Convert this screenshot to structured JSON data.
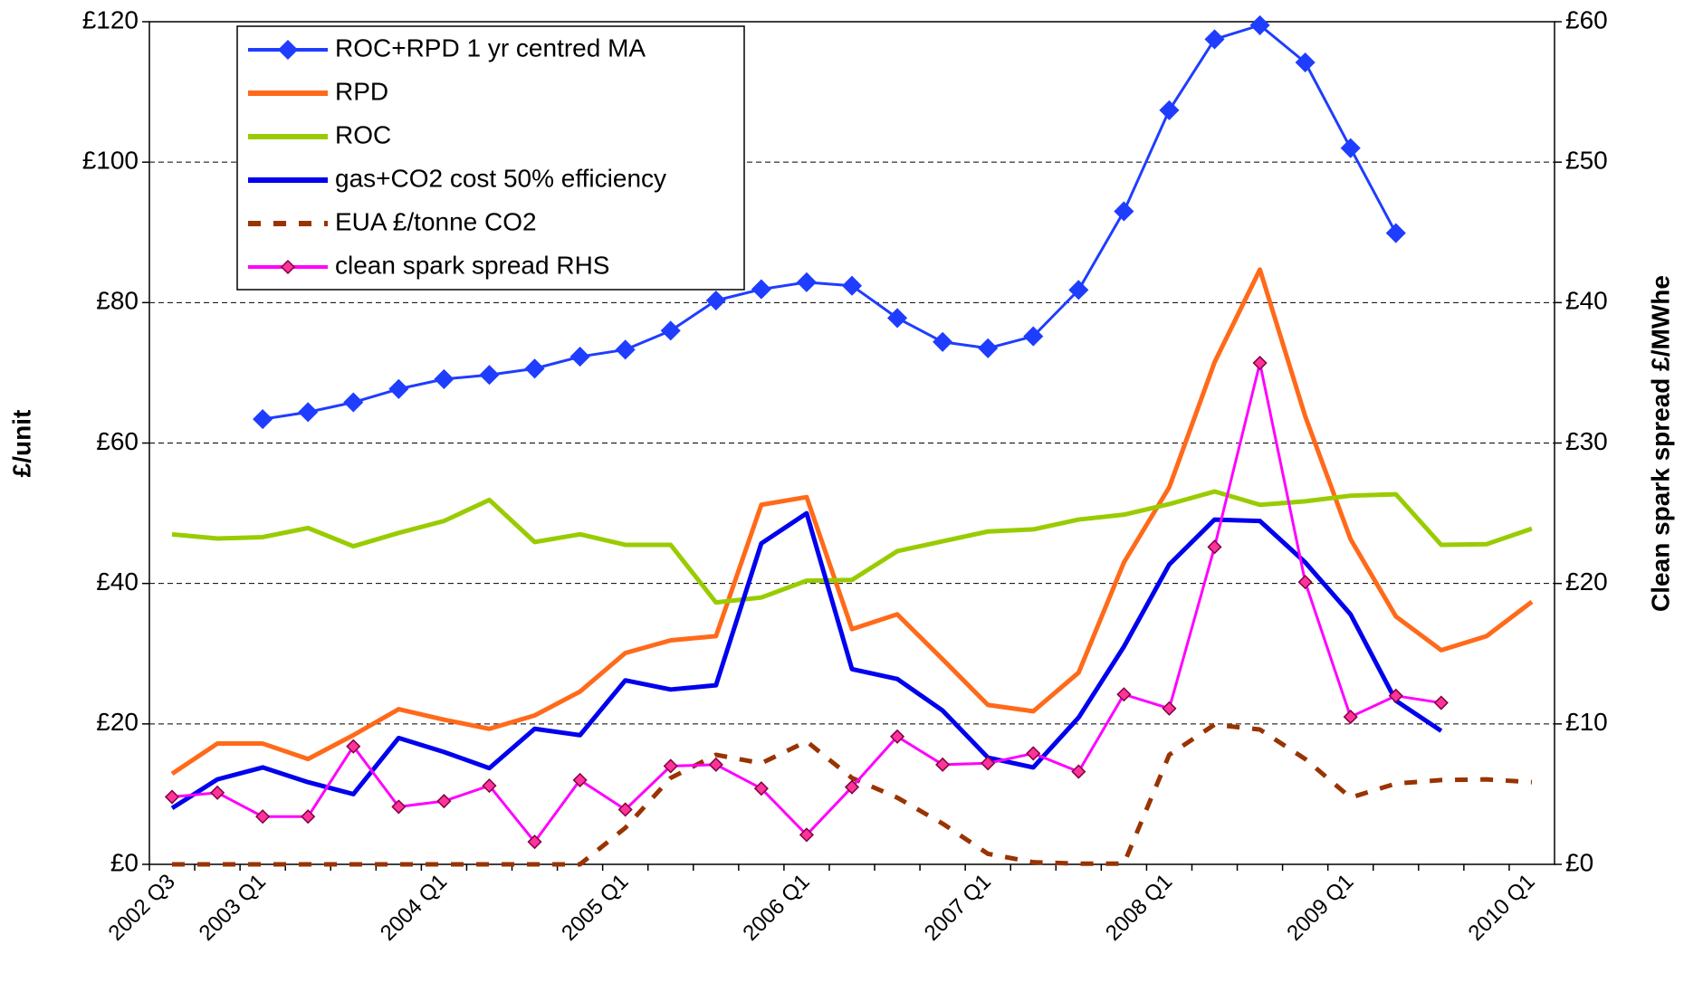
{
  "chart_data": {
    "type": "line",
    "categories": [
      "2002 Q3",
      null,
      "2003 Q1",
      null,
      null,
      null,
      "2004 Q1",
      null,
      null,
      null,
      "2005 Q1",
      null,
      null,
      null,
      "2006 Q1",
      null,
      null,
      null,
      "2007 Q1",
      null,
      null,
      null,
      "2008 Q1",
      null,
      null,
      null,
      "2009 Q1",
      null,
      null,
      null,
      "2010 Q1"
    ],
    "ylabel": "£/unit",
    "y2label": "Clean spark spread £/MWhe",
    "ylim": [
      0,
      120
    ],
    "yticks": [
      {
        "value": 0,
        "label": "£0"
      },
      {
        "value": 20,
        "label": "£20"
      },
      {
        "value": 40,
        "label": "£40"
      },
      {
        "value": 60,
        "label": "£60"
      },
      {
        "value": 80,
        "label": "£80"
      },
      {
        "value": 100,
        "label": "£100"
      },
      {
        "value": 120,
        "label": "£120"
      }
    ],
    "y2lim": [
      0,
      60
    ],
    "y2ticks": [
      {
        "value": 0,
        "label": "£0"
      },
      {
        "value": 10,
        "label": "£10"
      },
      {
        "value": 20,
        "label": "£20"
      },
      {
        "value": 30,
        "label": "£30"
      },
      {
        "value": 40,
        "label": "£40"
      },
      {
        "value": 50,
        "label": "£50"
      },
      {
        "value": 60,
        "label": "£60"
      }
    ],
    "grid": true,
    "legend": "top-left",
    "series": [
      {
        "name": "ROC+RPD 1 yr centred MA",
        "color": "#1f3dff",
        "marker": "diamond",
        "width": 3,
        "values": [
          null,
          null,
          63.4,
          64.4,
          65.8,
          67.7,
          69.1,
          69.7,
          70.6,
          72.3,
          73.3,
          76.0,
          80.3,
          81.9,
          82.9,
          82.4,
          77.8,
          74.4,
          73.5,
          75.2,
          81.8,
          93.0,
          107.4,
          117.5,
          119.5,
          114.2,
          102.0,
          89.9,
          null,
          null,
          null
        ]
      },
      {
        "name": "RPD",
        "color": "#ff6a1a",
        "width": 5,
        "values": [
          12.9,
          17.2,
          17.2,
          15.0,
          18.4,
          22.1,
          20.6,
          19.3,
          21.2,
          24.6,
          30.1,
          31.9,
          32.5,
          51.2,
          52.3,
          33.5,
          35.6,
          29.2,
          22.7,
          21.8,
          27.3,
          43.0,
          53.7,
          71.5,
          84.7,
          63.8,
          46.3,
          35.3,
          30.5,
          32.5,
          37.4
        ]
      },
      {
        "name": "ROC",
        "color": "#99cc00",
        "width": 5,
        "values": [
          47.0,
          46.4,
          46.6,
          47.9,
          45.3,
          47.2,
          48.9,
          51.9,
          45.9,
          47.0,
          45.5,
          45.5,
          37.3,
          38.0,
          40.4,
          40.5,
          44.6,
          46.0,
          47.4,
          47.7,
          49.1,
          49.8,
          51.3,
          53.1,
          51.2,
          51.7,
          52.5,
          52.7,
          45.5,
          45.6,
          47.8
        ]
      },
      {
        "name": "gas+CO2 cost 50% efficiency",
        "color": "#0000ee",
        "width": 5,
        "values": [
          8.0,
          12.1,
          13.8,
          11.7,
          10.0,
          18.0,
          16.0,
          13.7,
          19.3,
          18.4,
          26.2,
          24.9,
          25.5,
          45.7,
          50.0,
          27.8,
          26.4,
          21.9,
          15.2,
          13.8,
          20.9,
          31.0,
          42.7,
          49.1,
          48.9,
          43.0,
          35.6,
          23.3,
          19.0,
          null,
          null
        ]
      },
      {
        "name": "EUA £/tonne CO2",
        "color": "#993300",
        "dash": "14 14",
        "width": 5,
        "values": [
          0,
          0,
          0,
          0,
          0,
          0,
          0,
          0,
          0,
          0,
          5.2,
          12.3,
          15.6,
          14.4,
          17.5,
          12.3,
          9.5,
          5.8,
          1.5,
          0.3,
          0.1,
          0.1,
          15.6,
          19.9,
          19.2,
          15.0,
          9.5,
          11.5,
          12.0,
          12.1,
          11.7
        ]
      },
      {
        "name": "clean spark spread RHS",
        "color": "#ff00ff",
        "marker": "diamond",
        "marker_fill": "#ff3399",
        "marker_edge": "#800040",
        "width": 3,
        "axis": "y2",
        "values": [
          4.8,
          5.1,
          3.4,
          3.4,
          8.4,
          4.1,
          4.5,
          5.6,
          1.6,
          6.0,
          3.9,
          7.0,
          7.1,
          5.4,
          2.1,
          5.5,
          9.1,
          7.1,
          7.2,
          7.9,
          6.6,
          12.1,
          11.1,
          22.6,
          35.7,
          20.1,
          10.5,
          12.0,
          11.5,
          null,
          null
        ]
      }
    ]
  }
}
